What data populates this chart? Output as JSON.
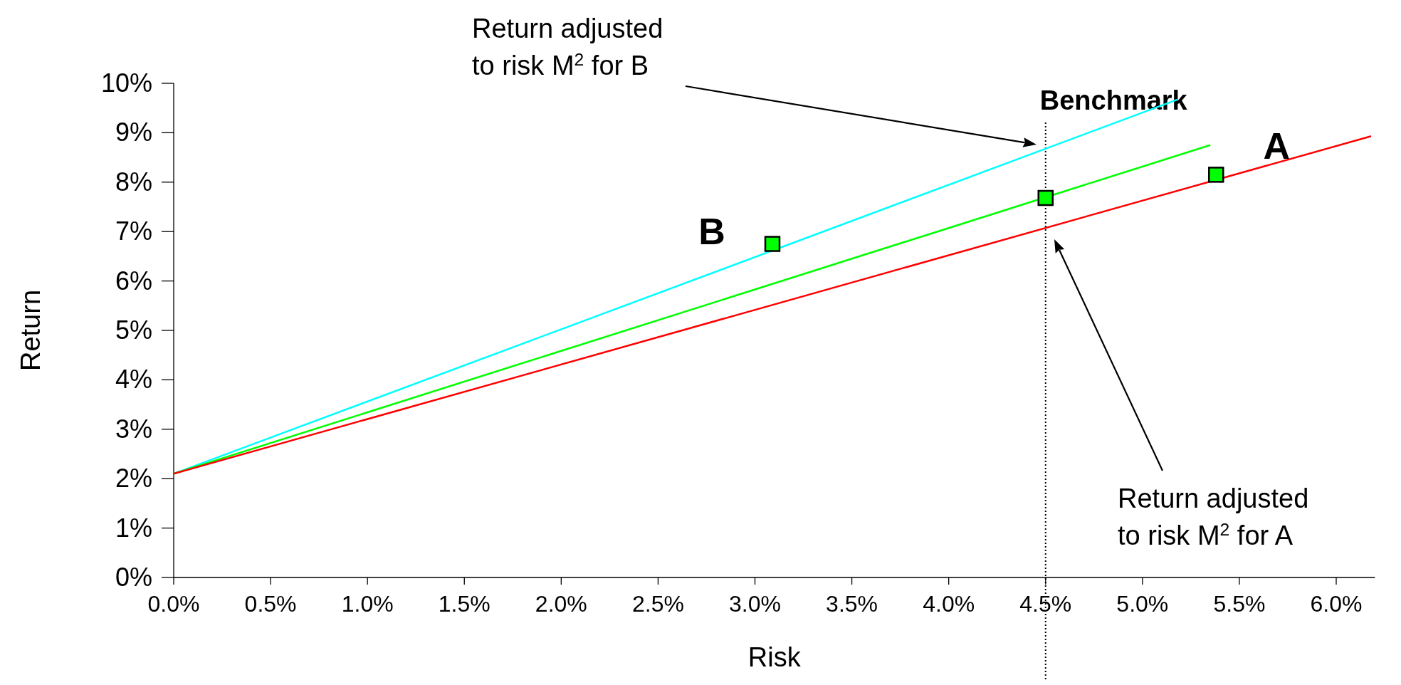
{
  "chart_data": {
    "type": "line",
    "xlabel": "Risk",
    "ylabel": "Return",
    "xlim": [
      0,
      6.2
    ],
    "ylim": [
      0,
      10
    ],
    "xticks": [
      {
        "value": 0,
        "label": "0.0%"
      },
      {
        "value": 0.5,
        "label": "0.5%"
      },
      {
        "value": 1,
        "label": "1.0%"
      },
      {
        "value": 1.5,
        "label": "1.5%"
      },
      {
        "value": 2,
        "label": "2.0%"
      },
      {
        "value": 2.5,
        "label": "2.5%"
      },
      {
        "value": 3,
        "label": "3.0%"
      },
      {
        "value": 3.5,
        "label": "3.5%"
      },
      {
        "value": 4,
        "label": "4.0%"
      },
      {
        "value": 4.5,
        "label": "4.5%"
      },
      {
        "value": 5,
        "label": "5.0%"
      },
      {
        "value": 5.5,
        "label": "5.5%"
      },
      {
        "value": 6,
        "label": "6.0%"
      }
    ],
    "yticks": [
      {
        "value": 0,
        "label": "0%"
      },
      {
        "value": 1,
        "label": "1%"
      },
      {
        "value": 2,
        "label": "2%"
      },
      {
        "value": 3,
        "label": "3%"
      },
      {
        "value": 4,
        "label": "4%"
      },
      {
        "value": 5,
        "label": "5%"
      },
      {
        "value": 6,
        "label": "6%"
      },
      {
        "value": 7,
        "label": "7%"
      },
      {
        "value": 8,
        "label": "8%"
      },
      {
        "value": 9,
        "label": "9%"
      },
      {
        "value": 10,
        "label": "10%"
      }
    ],
    "grid": false,
    "line_style": "solid",
    "series": [
      {
        "color": "#00ffff",
        "x": [
          0,
          5.18
        ],
        "values": [
          2.1,
          9.67
        ],
        "marker": "none"
      },
      {
        "color": "#00ff00",
        "x": [
          0,
          5.35
        ],
        "values": [
          2.1,
          8.75
        ],
        "marker": "none"
      },
      {
        "color": "#ff0000",
        "x": [
          0,
          6.18
        ],
        "values": [
          2.1,
          8.93
        ],
        "marker": "none"
      },
      {
        "type": "scatter",
        "color": "#00ff00",
        "x": [
          3.09,
          4.5,
          5.38
        ],
        "values": [
          6.75,
          7.68,
          8.15
        ],
        "marker": "square"
      }
    ],
    "ref_lines": [
      {
        "axis": "x",
        "value": 4.5,
        "label": "Benchmark",
        "line_style": "dotted",
        "color": "#000000"
      }
    ],
    "annotations": [
      {
        "text": "B",
        "x": 3.09,
        "y": 6.75
      },
      {
        "text": "A",
        "x": 5.38,
        "y": 8.15
      },
      "Return adjusted to risk  M$^{2}$  for B",
      "Return adjusted to risk  M$^{2}$  for A"
    ]
  }
}
